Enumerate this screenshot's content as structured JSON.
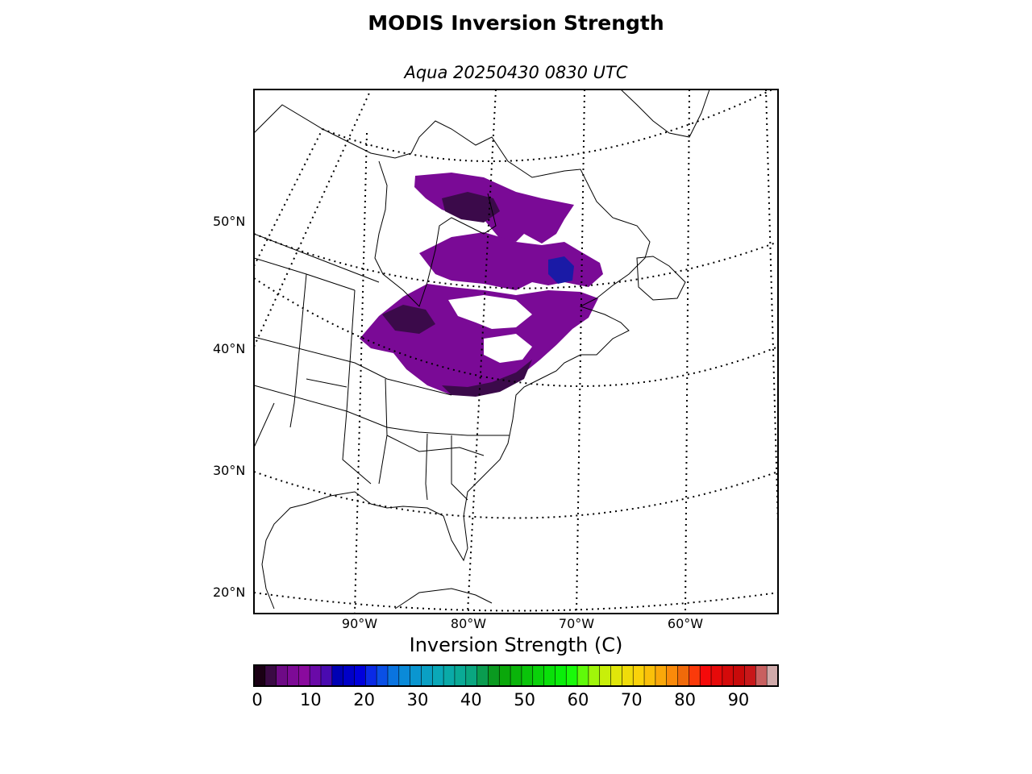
{
  "title": "MODIS Inversion Strength",
  "subtitle": "Aqua 20250430 0830 UTC",
  "map": {
    "lat_labels": [
      "50°N",
      "40°N",
      "30°N",
      "20°N"
    ],
    "lon_labels": [
      "90°W",
      "80°W",
      "70°W",
      "60°W"
    ],
    "colors": {
      "low_inversion": "#7a0a96",
      "dark_inversion": "#3b0a4a",
      "blue_patch": "#1a1aa6",
      "coastline": "#000000"
    }
  },
  "colorbar": {
    "label": "Inversion Strength (C)",
    "ticks": [
      "0",
      "10",
      "20",
      "30",
      "40",
      "50",
      "60",
      "70",
      "80",
      "90"
    ],
    "range": [
      0,
      98
    ],
    "colors": [
      "#1a0014",
      "#3a0a44",
      "#6e0a86",
      "#7d0a96",
      "#8a0a9e",
      "#6a0aa8",
      "#4a0ab0",
      "#0000b4",
      "#0000c8",
      "#0000dc",
      "#0a2ae6",
      "#0a50e6",
      "#0a74e0",
      "#0a8ad8",
      "#0a96d0",
      "#0aa0c4",
      "#0aa8b8",
      "#0aaaa8",
      "#0aaa96",
      "#0aa680",
      "#0a9c50",
      "#0a9a20",
      "#0aa80a",
      "#0ab40a",
      "#0ac40a",
      "#0ad20a",
      "#0ae00a",
      "#0aee0a",
      "#1afa0a",
      "#60fa0a",
      "#a0f50a",
      "#c8ef0a",
      "#e0e60a",
      "#f0dc0a",
      "#fad20a",
      "#fac00a",
      "#faa80a",
      "#fa8a0a",
      "#f06a0a",
      "#fa3a0a",
      "#f50a0a",
      "#e60a0a",
      "#d40a0a",
      "#c80a0a",
      "#c8181a",
      "#c86060",
      "#d0aaaa"
    ]
  }
}
